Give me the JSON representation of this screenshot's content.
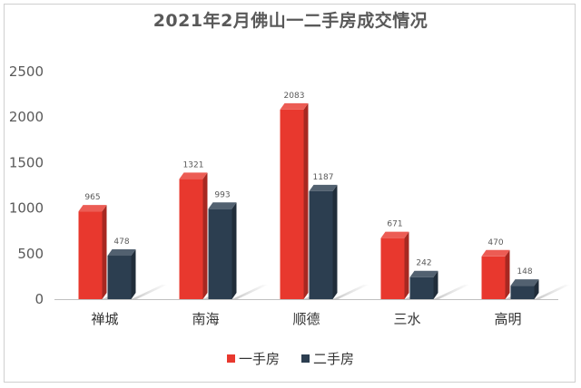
{
  "chart_data": {
    "type": "bar",
    "title": "2021年2月佛山一二手房成交情况",
    "categories": [
      "禅城",
      "南海",
      "顺德",
      "三水",
      "高明"
    ],
    "series": [
      {
        "name": "一手房",
        "values": [
          965,
          1321,
          2083,
          671,
          470
        ],
        "color": "#e8382e"
      },
      {
        "name": "二手房",
        "values": [
          478,
          993,
          1187,
          242,
          148
        ],
        "color": "#2c3e50"
      }
    ],
    "yticks": [
      0,
      500,
      1000,
      1500,
      2000,
      2500
    ],
    "ylim": [
      0,
      2500
    ],
    "xlabel": "",
    "ylabel": "",
    "grid": false,
    "legend": "bottom"
  }
}
